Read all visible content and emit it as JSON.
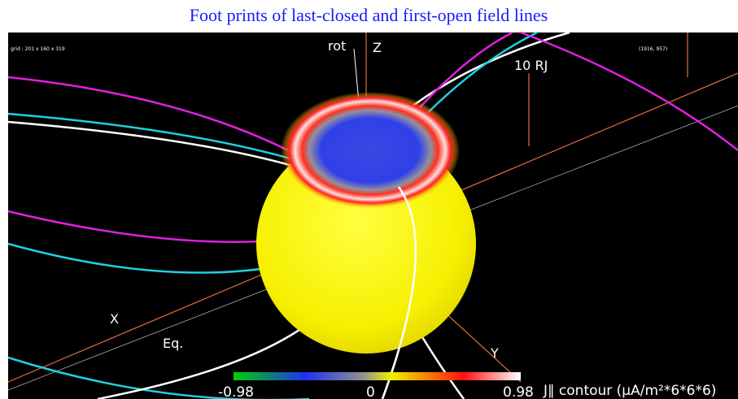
{
  "title": "Foot prints of last-closed and first-open field lines",
  "panel": {
    "grid_info": "grid : 201 x 160 x 319",
    "coords": "(1916, 957)"
  },
  "axes": {
    "rot": "rot",
    "z": "Z",
    "scale": "10 RJ",
    "x": "X",
    "equator": "Eq.",
    "y": "Y"
  },
  "colorbar": {
    "min_label": "-0.98",
    "mid_label": "0",
    "max_label": "0.98",
    "caption": "J∥ contour (μA/m²*6*6*6)"
  }
}
